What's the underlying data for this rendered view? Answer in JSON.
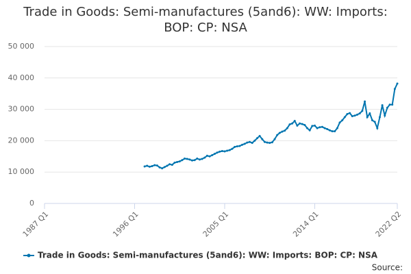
{
  "chart_data": {
    "type": "line",
    "title": "Trade in Goods: Semi-manufactures (5and6): WW: Imports: BOP: CP: NSA",
    "source": "Source:",
    "x": [
      1997,
      1997.25,
      1997.5,
      1997.75,
      1998,
      1998.25,
      1998.5,
      1998.75,
      1999,
      1999.25,
      1999.5,
      1999.75,
      2000,
      2000.25,
      2000.5,
      2000.75,
      2001,
      2001.25,
      2001.5,
      2001.75,
      2002,
      2002.25,
      2002.5,
      2002.75,
      2003,
      2003.25,
      2003.5,
      2003.75,
      2004,
      2004.25,
      2004.5,
      2004.75,
      2005,
      2005.25,
      2005.5,
      2005.75,
      2006,
      2006.25,
      2006.5,
      2006.75,
      2007,
      2007.25,
      2007.5,
      2007.75,
      2008,
      2008.25,
      2008.5,
      2008.75,
      2009,
      2009.25,
      2009.5,
      2009.75,
      2010,
      2010.25,
      2010.5,
      2010.75,
      2011,
      2011.25,
      2011.5,
      2011.75,
      2012,
      2012.25,
      2012.5,
      2012.75,
      2013,
      2013.25,
      2013.5,
      2013.75,
      2014,
      2014.25,
      2014.5,
      2014.75,
      2015,
      2015.25,
      2015.5,
      2015.75,
      2016,
      2016.25,
      2016.5,
      2016.75,
      2017,
      2017.25,
      2017.5,
      2017.75,
      2018,
      2018.25,
      2018.5,
      2018.75,
      2019,
      2019.25,
      2019.5,
      2019.75,
      2020,
      2020.25,
      2020.5,
      2020.75,
      2021,
      2021.25,
      2021.5,
      2021.75,
      2022,
      2022.25
    ],
    "series": [
      {
        "name": "Trade in Goods: Semi-manufactures (5and6): WW: Imports: BOP: CP: NSA",
        "color": "#0075b0",
        "values": [
          11800,
          12000,
          11700,
          11900,
          12200,
          12100,
          11500,
          11200,
          11600,
          12000,
          12500,
          12300,
          13000,
          13200,
          13400,
          13800,
          14300,
          14200,
          14000,
          13700,
          13800,
          14300,
          14000,
          14200,
          14600,
          15200,
          15000,
          15400,
          15800,
          16200,
          16500,
          16700,
          16600,
          16800,
          17000,
          17400,
          18000,
          18200,
          18300,
          18700,
          19000,
          19400,
          19600,
          19300,
          20000,
          20800,
          21500,
          20500,
          19600,
          19400,
          19300,
          19500,
          20500,
          21800,
          22500,
          22900,
          23200,
          24000,
          25200,
          25500,
          26300,
          24800,
          25500,
          25300,
          25000,
          24000,
          23300,
          24700,
          24800,
          24000,
          24300,
          24400,
          24000,
          23700,
          23300,
          23000,
          23000,
          24000,
          25800,
          26500,
          27500,
          28500,
          28800,
          27800,
          28000,
          28300,
          28700,
          29500,
          32500,
          27500,
          28700,
          26500,
          26000,
          24000,
          27500,
          31300,
          28000,
          30500,
          31500,
          31500,
          36500,
          38200
        ]
      }
    ],
    "xlim": [
      1987,
      2022.25
    ],
    "xticks": [
      {
        "value": 1987,
        "label": "1987 Q1"
      },
      {
        "value": 1996,
        "label": "1996 Q1"
      },
      {
        "value": 2005,
        "label": "2005 Q1"
      },
      {
        "value": 2014,
        "label": "2014 Q1"
      },
      {
        "value": 2022.25,
        "label": "2022 Q2"
      }
    ],
    "ylim": [
      0,
      50000
    ],
    "yticks": [
      0,
      {
        "value": 10000,
        "label": "10 000"
      },
      {
        "value": 20000,
        "label": "20 000"
      },
      {
        "value": 30000,
        "label": "30 000"
      },
      {
        "value": 40000,
        "label": "40 000"
      },
      {
        "value": 50000,
        "label": "50 000"
      }
    ],
    "grid": true
  }
}
